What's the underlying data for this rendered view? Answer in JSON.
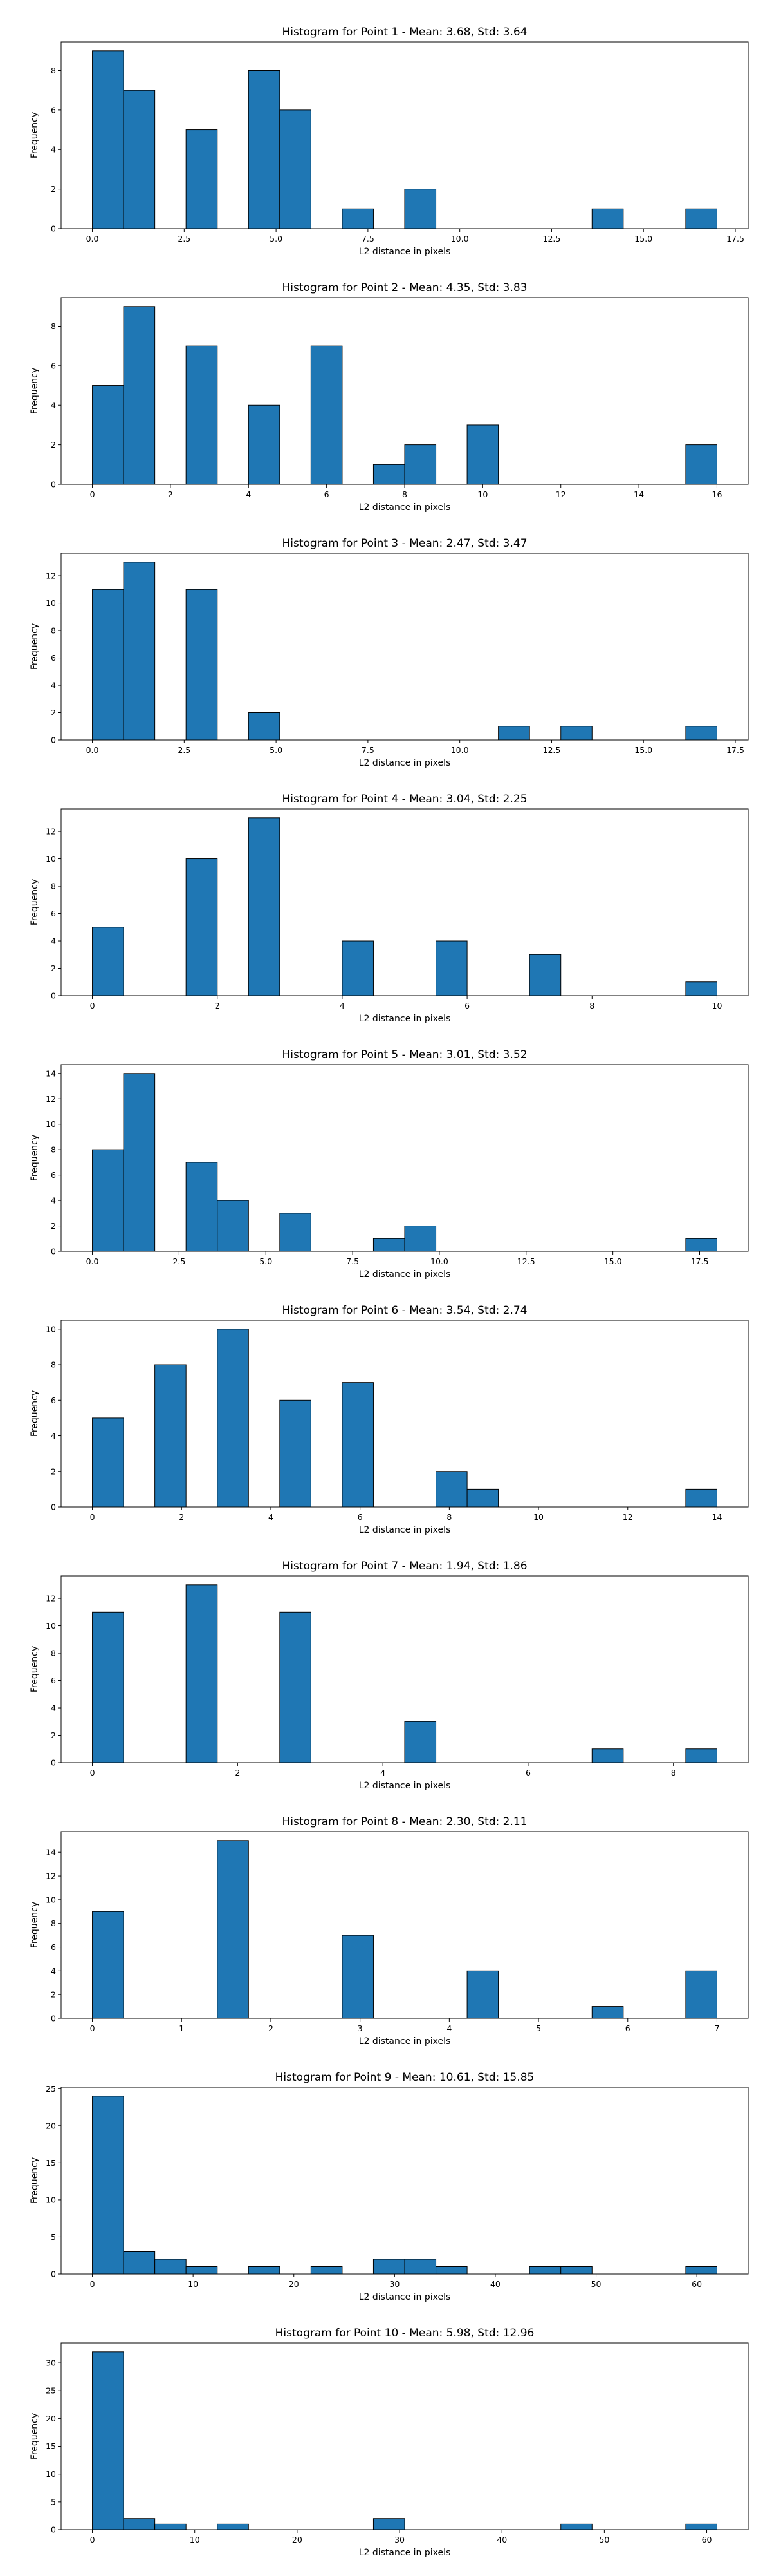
{
  "chart_data": [
    {
      "type": "bar",
      "title": "Histogram for Point 1 - Mean: 3.68, Std: 3.64",
      "xlabel": "L2 distance in pixels",
      "ylabel": "Frequency",
      "bin_edges": [
        0,
        0.85,
        1.7,
        2.55,
        3.4,
        4.25,
        5.1,
        5.95,
        6.8,
        7.65,
        8.5,
        9.35,
        10.2,
        11.05,
        11.9,
        12.75,
        13.6,
        14.45,
        15.3,
        16.15,
        17.0
      ],
      "values": [
        9,
        7,
        0,
        5,
        0,
        8,
        6,
        0,
        1,
        0,
        2,
        0,
        0,
        0,
        0,
        0,
        1,
        0,
        0,
        1
      ],
      "xlim": [
        -0.85,
        17.85
      ],
      "ylim": [
        0,
        9.45
      ],
      "xticks": [
        0,
        2.5,
        5,
        7.5,
        10,
        12.5,
        15,
        17.5
      ],
      "xtick_labels": [
        "0.0",
        "2.5",
        "5.0",
        "7.5",
        "10.0",
        "12.5",
        "15.0",
        "17.5"
      ],
      "yticks": [
        0,
        2,
        4,
        6,
        8
      ],
      "ytick_labels": [
        "0",
        "2",
        "4",
        "6",
        "8"
      ],
      "grid": false
    },
    {
      "type": "bar",
      "title": "Histogram for Point 2 - Mean: 4.35, Std: 3.83",
      "xlabel": "L2 distance in pixels",
      "ylabel": "Frequency",
      "bin_edges": [
        0,
        0.8,
        1.6,
        2.4,
        3.2,
        4.0,
        4.8,
        5.6,
        6.4,
        7.2,
        8.0,
        8.8,
        9.6,
        10.4,
        11.2,
        12.0,
        12.8,
        13.6,
        14.4,
        15.2,
        16.0
      ],
      "values": [
        5,
        9,
        0,
        7,
        0,
        4,
        0,
        7,
        0,
        1,
        2,
        0,
        3,
        0,
        0,
        0,
        0,
        0,
        0,
        2
      ],
      "xlim": [
        -0.8,
        16.8
      ],
      "ylim": [
        0,
        9.45
      ],
      "xticks": [
        0,
        2,
        4,
        6,
        8,
        10,
        12,
        14,
        16
      ],
      "xtick_labels": [
        "0",
        "2",
        "4",
        "6",
        "8",
        "10",
        "12",
        "14",
        "16"
      ],
      "yticks": [
        0,
        2,
        4,
        6,
        8
      ],
      "ytick_labels": [
        "0",
        "2",
        "4",
        "6",
        "8"
      ],
      "grid": false
    },
    {
      "type": "bar",
      "title": "Histogram for Point 3 - Mean: 2.47, Std: 3.47",
      "xlabel": "L2 distance in pixels",
      "ylabel": "Frequency",
      "bin_edges": [
        0,
        0.85,
        1.7,
        2.55,
        3.4,
        4.25,
        5.1,
        5.95,
        6.8,
        7.65,
        8.5,
        9.35,
        10.2,
        11.05,
        11.9,
        12.75,
        13.6,
        14.45,
        15.3,
        16.15,
        17.0
      ],
      "values": [
        11,
        13,
        0,
        11,
        0,
        2,
        0,
        0,
        0,
        0,
        0,
        0,
        0,
        1,
        0,
        1,
        0,
        0,
        0,
        1
      ],
      "xlim": [
        -0.85,
        17.85
      ],
      "ylim": [
        0,
        13.65
      ],
      "xticks": [
        0,
        2.5,
        5,
        7.5,
        10,
        12.5,
        15,
        17.5
      ],
      "xtick_labels": [
        "0.0",
        "2.5",
        "5.0",
        "7.5",
        "10.0",
        "12.5",
        "15.0",
        "17.5"
      ],
      "yticks": [
        0,
        2,
        4,
        6,
        8,
        10,
        12
      ],
      "ytick_labels": [
        "0",
        "2",
        "4",
        "6",
        "8",
        "10",
        "12"
      ],
      "grid": false
    },
    {
      "type": "bar",
      "title": "Histogram for Point 4 - Mean: 3.04, Std: 2.25",
      "xlabel": "L2 distance in pixels",
      "ylabel": "Frequency",
      "bin_edges": [
        0,
        0.5,
        1.0,
        1.5,
        2.0,
        2.5,
        3.0,
        3.5,
        4.0,
        4.5,
        5.0,
        5.5,
        6.0,
        6.5,
        7.0,
        7.5,
        8.0,
        8.5,
        9.0,
        9.5,
        10.0
      ],
      "values": [
        5,
        0,
        0,
        10,
        0,
        13,
        0,
        0,
        4,
        0,
        0,
        4,
        0,
        0,
        3,
        0,
        0,
        0,
        0,
        1
      ],
      "xlim": [
        -0.5,
        10.5
      ],
      "ylim": [
        0,
        13.65
      ],
      "xticks": [
        0,
        2,
        4,
        6,
        8,
        10
      ],
      "xtick_labels": [
        "0",
        "2",
        "4",
        "6",
        "8",
        "10"
      ],
      "yticks": [
        0,
        2,
        4,
        6,
        8,
        10,
        12
      ],
      "ytick_labels": [
        "0",
        "2",
        "4",
        "6",
        "8",
        "10",
        "12"
      ],
      "grid": false
    },
    {
      "type": "bar",
      "title": "Histogram for Point 5 - Mean: 3.01, Std: 3.52",
      "xlabel": "L2 distance in pixels",
      "ylabel": "Frequency",
      "bin_edges": [
        0,
        0.9,
        1.8,
        2.7,
        3.6,
        4.5,
        5.4,
        6.3,
        7.2,
        8.1,
        9.0,
        9.9,
        10.8,
        11.7,
        12.6,
        13.5,
        14.4,
        15.3,
        16.2,
        17.1,
        18.0
      ],
      "values": [
        8,
        14,
        0,
        7,
        4,
        0,
        3,
        0,
        0,
        1,
        2,
        0,
        0,
        0,
        0,
        0,
        0,
        0,
        0,
        1
      ],
      "xlim": [
        -0.9,
        18.9
      ],
      "ylim": [
        0,
        14.7
      ],
      "xticks": [
        0,
        2.5,
        5,
        7.5,
        10,
        12.5,
        15,
        17.5
      ],
      "xtick_labels": [
        "0.0",
        "2.5",
        "5.0",
        "7.5",
        "10.0",
        "12.5",
        "15.0",
        "17.5"
      ],
      "yticks": [
        0,
        2,
        4,
        6,
        8,
        10,
        12,
        14
      ],
      "ytick_labels": [
        "0",
        "2",
        "4",
        "6",
        "8",
        "10",
        "12",
        "14"
      ],
      "grid": false
    },
    {
      "type": "bar",
      "title": "Histogram for Point 6 - Mean: 3.54, Std: 2.74",
      "xlabel": "L2 distance in pixels",
      "ylabel": "Frequency",
      "bin_edges": [
        0,
        0.7,
        1.4,
        2.1,
        2.8,
        3.5,
        4.2,
        4.9,
        5.6,
        6.3,
        7.0,
        7.7,
        8.4,
        9.1,
        9.8,
        10.5,
        11.2,
        11.9,
        12.6,
        13.3,
        14.0
      ],
      "values": [
        5,
        0,
        8,
        0,
        10,
        0,
        6,
        0,
        7,
        0,
        0,
        2,
        1,
        0,
        0,
        0,
        0,
        0,
        0,
        1
      ],
      "xlim": [
        -0.7,
        14.7
      ],
      "ylim": [
        0,
        10.5
      ],
      "xticks": [
        0,
        2,
        4,
        6,
        8,
        10,
        12,
        14
      ],
      "xtick_labels": [
        "0",
        "2",
        "4",
        "6",
        "8",
        "10",
        "12",
        "14"
      ],
      "yticks": [
        0,
        2,
        4,
        6,
        8,
        10
      ],
      "ytick_labels": [
        "0",
        "2",
        "4",
        "6",
        "8",
        "10"
      ],
      "grid": false
    },
    {
      "type": "bar",
      "title": "Histogram for Point 7 - Mean: 1.94, Std: 1.86",
      "xlabel": "L2 distance in pixels",
      "ylabel": "Frequency",
      "bin_edges": [
        0,
        0.43,
        0.86,
        1.29,
        1.72,
        2.15,
        2.58,
        3.01,
        3.44,
        3.87,
        4.3,
        4.73,
        5.16,
        5.59,
        6.02,
        6.45,
        6.88,
        7.31,
        7.74,
        8.17,
        8.6
      ],
      "values": [
        11,
        0,
        0,
        13,
        0,
        0,
        11,
        0,
        0,
        0,
        3,
        0,
        0,
        0,
        0,
        0,
        1,
        0,
        0,
        1
      ],
      "xlim": [
        -0.43,
        9.03
      ],
      "ylim": [
        0,
        13.65
      ],
      "xticks": [
        0,
        2,
        4,
        6,
        8
      ],
      "xtick_labels": [
        "0",
        "2",
        "4",
        "6",
        "8"
      ],
      "yticks": [
        0,
        2,
        4,
        6,
        8,
        10,
        12
      ],
      "ytick_labels": [
        "0",
        "2",
        "4",
        "6",
        "8",
        "10",
        "12"
      ],
      "grid": false
    },
    {
      "type": "bar",
      "title": "Histogram for Point 8 - Mean: 2.30, Std: 2.11",
      "xlabel": "L2 distance in pixels",
      "ylabel": "Frequency",
      "bin_edges": [
        0,
        0.35,
        0.7,
        1.05,
        1.4,
        1.75,
        2.1,
        2.45,
        2.8,
        3.15,
        3.5,
        3.85,
        4.2,
        4.55,
        4.9,
        5.25,
        5.6,
        5.95,
        6.3,
        6.65,
        7.0
      ],
      "values": [
        9,
        0,
        0,
        0,
        15,
        0,
        0,
        0,
        7,
        0,
        0,
        0,
        4,
        0,
        0,
        0,
        1,
        0,
        0,
        4
      ],
      "xlim": [
        -0.35,
        7.35
      ],
      "ylim": [
        0,
        15.75
      ],
      "xticks": [
        0,
        1,
        2,
        3,
        4,
        5,
        6,
        7
      ],
      "xtick_labels": [
        "0",
        "1",
        "2",
        "3",
        "4",
        "5",
        "6",
        "7"
      ],
      "yticks": [
        0,
        2,
        4,
        6,
        8,
        10,
        12,
        14
      ],
      "ytick_labels": [
        "0",
        "2",
        "4",
        "6",
        "8",
        "10",
        "12",
        "14"
      ],
      "grid": false
    },
    {
      "type": "bar",
      "title": "Histogram for Point 9 - Mean: 10.61, Std: 15.85",
      "xlabel": "L2 distance in pixels",
      "ylabel": "Frequency",
      "bin_edges": [
        0,
        3.1,
        6.2,
        9.3,
        12.4,
        15.5,
        18.6,
        21.7,
        24.8,
        27.9,
        31.0,
        34.1,
        37.2,
        40.3,
        43.4,
        46.5,
        49.6,
        52.7,
        55.8,
        58.9,
        62.0
      ],
      "values": [
        24,
        3,
        2,
        1,
        0,
        1,
        0,
        1,
        0,
        2,
        2,
        1,
        0,
        0,
        1,
        1,
        0,
        0,
        0,
        1
      ],
      "xlim": [
        -3.1,
        65.1
      ],
      "ylim": [
        0,
        25.2
      ],
      "xticks": [
        0,
        10,
        20,
        30,
        40,
        50,
        60
      ],
      "xtick_labels": [
        "0",
        "10",
        "20",
        "30",
        "40",
        "50",
        "60"
      ],
      "yticks": [
        0,
        5,
        10,
        15,
        20,
        25
      ],
      "ytick_labels": [
        "0",
        "5",
        "10",
        "15",
        "20",
        "25"
      ],
      "grid": false
    },
    {
      "type": "bar",
      "title": "Histogram for Point 10 - Mean: 5.98, Std: 12.96",
      "xlabel": "L2 distance in pixels",
      "ylabel": "Frequency",
      "bin_edges": [
        0,
        3.05,
        6.1,
        9.15,
        12.2,
        15.25,
        18.3,
        21.35,
        24.4,
        27.45,
        30.5,
        33.55,
        36.6,
        39.65,
        42.7,
        45.75,
        48.8,
        51.85,
        54.9,
        57.95,
        61.0
      ],
      "values": [
        32,
        2,
        1,
        0,
        1,
        0,
        0,
        0,
        0,
        2,
        0,
        0,
        0,
        0,
        0,
        1,
        0,
        0,
        0,
        1
      ],
      "xlim": [
        -3.05,
        64.05
      ],
      "ylim": [
        0,
        33.6
      ],
      "xticks": [
        0,
        10,
        20,
        30,
        40,
        50,
        60
      ],
      "xtick_labels": [
        "0",
        "10",
        "20",
        "30",
        "40",
        "50",
        "60"
      ],
      "yticks": [
        0,
        5,
        10,
        15,
        20,
        25,
        30
      ],
      "ytick_labels": [
        "0",
        "5",
        "10",
        "15",
        "20",
        "25",
        "30"
      ],
      "grid": false
    }
  ],
  "style": {
    "bar_color": "#1f77b4",
    "edge_color": "#000000"
  }
}
